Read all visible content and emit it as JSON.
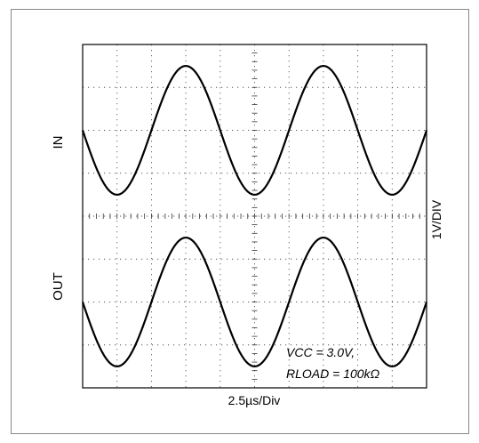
{
  "chart_data": {
    "type": "line",
    "title": "",
    "xlabel": "2.5µs/Div",
    "ylabel_right": "1V/DIV",
    "grid": {
      "x_divisions": 10,
      "y_divisions": 8,
      "style": "dotted"
    },
    "xlim": [
      0,
      25
    ],
    "x_unit": "µs",
    "series": [
      {
        "name": "IN",
        "waveform": "sine",
        "period_us": 10,
        "amplitude_div": 1.5,
        "center_div": 2,
        "peak_x_us": [
          7.5,
          17.5
        ],
        "trough_x_us": [
          2.5,
          12.5,
          22.5
        ]
      },
      {
        "name": "OUT",
        "waveform": "sine",
        "period_us": 10,
        "amplitude_div": 1.5,
        "center_div": -2,
        "peak_x_us": [
          7.5,
          17.5
        ],
        "trough_x_us": [
          2.5,
          12.5,
          22.5
        ]
      }
    ],
    "annotation": {
      "line1": "VCC = 3.0V,",
      "line2": "RLOAD = 100kΩ"
    },
    "trace_color": "#000000",
    "grid_color": "#555555"
  }
}
